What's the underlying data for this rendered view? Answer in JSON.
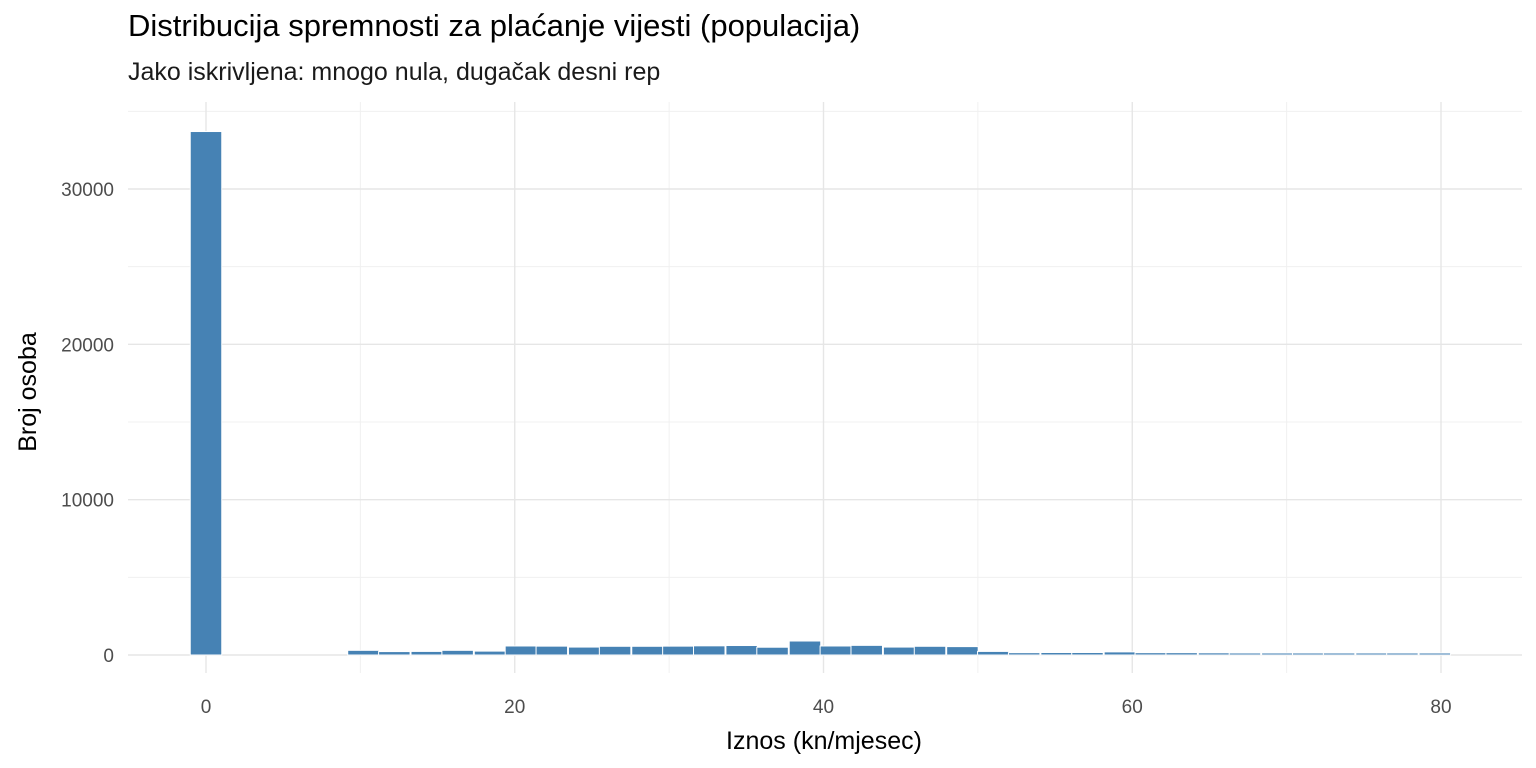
{
  "chart_data": {
    "type": "bar",
    "title": "Distribucija spremnosti za plaćanje vijesti (populacija)",
    "subtitle": "Jako iskrivljena: mnogo nula, dugačak desni rep",
    "xlabel": "Iznos (kn/mjesec)",
    "ylabel": "Broj osoba",
    "xlim": [
      -5,
      85
    ],
    "ylim": [
      0,
      35000
    ],
    "x_ticks": [
      0,
      20,
      40,
      60,
      80
    ],
    "y_ticks": [
      0,
      10000,
      20000,
      30000
    ],
    "x_tick_labels": [
      "0",
      "20",
      "40",
      "60",
      "80"
    ],
    "y_tick_labels": [
      "0",
      "10000",
      "20000",
      "30000"
    ],
    "grid": true,
    "legend": "none",
    "bar_color": "#4682B4",
    "bin_width": 2.04,
    "bins": [
      {
        "x": 0,
        "count": 33700
      },
      {
        "x": 10.2,
        "count": 300
      },
      {
        "x": 12.2,
        "count": 220
      },
      {
        "x": 14.3,
        "count": 230
      },
      {
        "x": 16.3,
        "count": 300
      },
      {
        "x": 18.4,
        "count": 250
      },
      {
        "x": 20.4,
        "count": 580
      },
      {
        "x": 22.4,
        "count": 570
      },
      {
        "x": 24.5,
        "count": 510
      },
      {
        "x": 26.5,
        "count": 560
      },
      {
        "x": 28.6,
        "count": 560
      },
      {
        "x": 30.6,
        "count": 570
      },
      {
        "x": 32.6,
        "count": 590
      },
      {
        "x": 34.7,
        "count": 610
      },
      {
        "x": 36.7,
        "count": 500
      },
      {
        "x": 38.8,
        "count": 900
      },
      {
        "x": 40.8,
        "count": 580
      },
      {
        "x": 42.8,
        "count": 620
      },
      {
        "x": 44.9,
        "count": 510
      },
      {
        "x": 46.9,
        "count": 560
      },
      {
        "x": 49.0,
        "count": 540
      },
      {
        "x": 51.0,
        "count": 230
      },
      {
        "x": 53.0,
        "count": 150
      },
      {
        "x": 55.1,
        "count": 160
      },
      {
        "x": 57.1,
        "count": 160
      },
      {
        "x": 59.2,
        "count": 200
      },
      {
        "x": 61.2,
        "count": 150
      },
      {
        "x": 63.2,
        "count": 150
      },
      {
        "x": 65.3,
        "count": 140
      },
      {
        "x": 67.3,
        "count": 130
      },
      {
        "x": 69.4,
        "count": 130
      },
      {
        "x": 71.4,
        "count": 130
      },
      {
        "x": 73.4,
        "count": 130
      },
      {
        "x": 75.5,
        "count": 130
      },
      {
        "x": 77.5,
        "count": 130
      },
      {
        "x": 79.6,
        "count": 130
      }
    ]
  }
}
